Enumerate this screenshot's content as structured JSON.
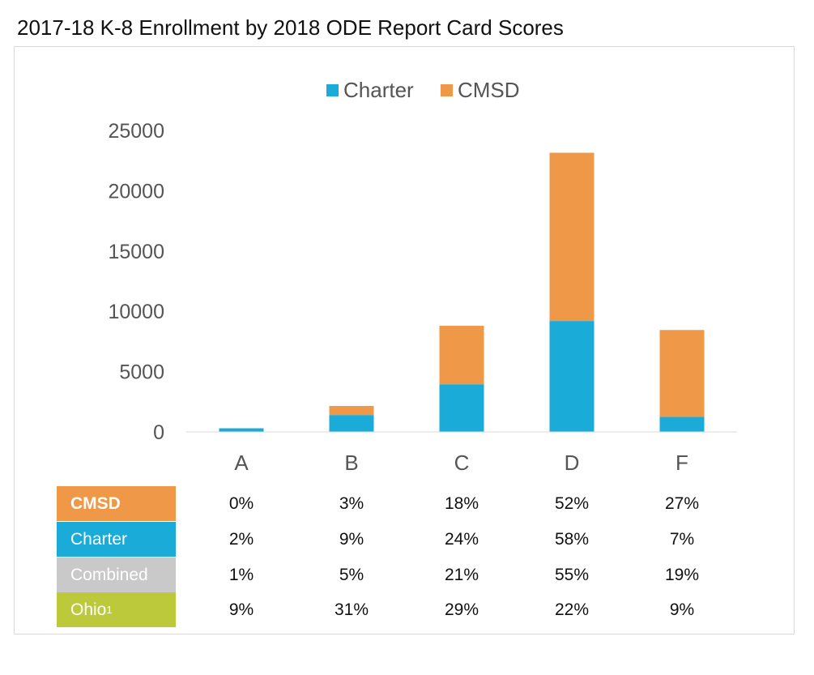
{
  "page": {
    "title": "2017-18 K-8 Enrollment by 2018 ODE Report Card Scores"
  },
  "chart_data": {
    "type": "bar",
    "stacked": true,
    "title": "2017-18 K-8 Enrollment by 2018 ODE Report Card Scores",
    "xlabel": "",
    "ylabel": "",
    "categories": [
      "A",
      "B",
      "C",
      "D",
      "F"
    ],
    "ylim": [
      0,
      25000
    ],
    "yticks": [
      0,
      5000,
      10000,
      15000,
      20000,
      25000
    ],
    "grid": false,
    "legend_position": "top-center",
    "series": [
      {
        "name": "Charter",
        "color": "#1aabd9",
        "values": [
          300,
          1400,
          3950,
          9200,
          1250
        ]
      },
      {
        "name": "CMSD",
        "color": "#ee9848",
        "values": [
          0,
          750,
          4850,
          13950,
          7200
        ]
      }
    ]
  },
  "table": {
    "columns": [
      "A",
      "B",
      "C",
      "D",
      "F"
    ],
    "rows": [
      {
        "label": "CMSD",
        "sup": "",
        "color": "#ee9848",
        "bold": true,
        "values": [
          "0%",
          "3%",
          "18%",
          "52%",
          "27%"
        ]
      },
      {
        "label": "Charter",
        "sup": "",
        "color": "#1aabd9",
        "bold": false,
        "values": [
          "2%",
          "9%",
          "24%",
          "58%",
          "7%"
        ]
      },
      {
        "label": "Combined",
        "sup": "",
        "color": "#c9c9c9",
        "bold": false,
        "values": [
          "1%",
          "5%",
          "21%",
          "55%",
          "19%"
        ]
      },
      {
        "label": "Ohio",
        "sup": "1",
        "color": "#bcc93b",
        "bold": false,
        "values": [
          "9%",
          "31%",
          "29%",
          "22%",
          "9%"
        ]
      }
    ]
  }
}
